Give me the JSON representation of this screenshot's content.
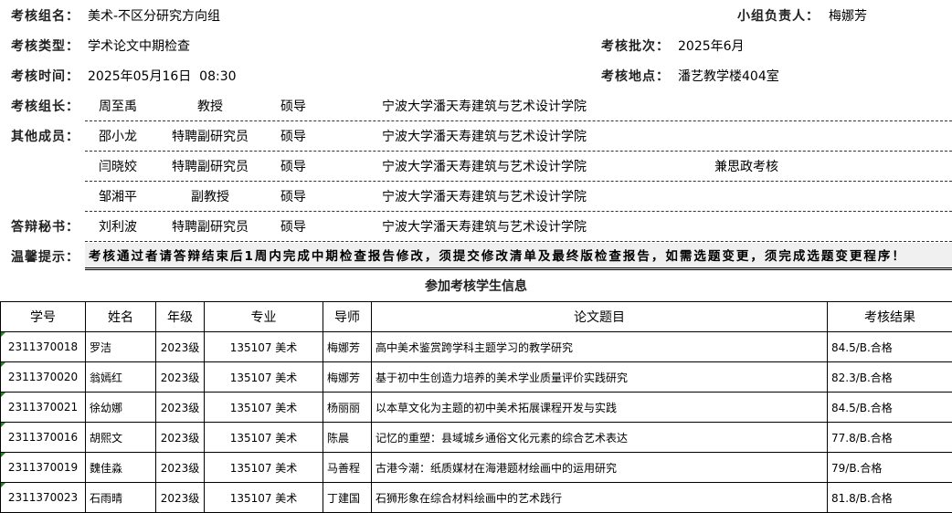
{
  "header": {
    "group_label": "考核组名：",
    "group": "美术-不区分研究方向组",
    "leader_label": "小组负责人：",
    "leader": "梅娜芳",
    "type_label": "考核类型：",
    "type": "学术论文中期检查",
    "batch_label": "考核批次：",
    "batch": "2025年6月",
    "time_label": "考核时间：",
    "time": "2025年05月16日  08:30",
    "place_label": "考核地点：",
    "place": "潘艺教学楼404室"
  },
  "committee": [
    {
      "role": "考核组长：",
      "name": "周至禹",
      "title": "教授",
      "type": "硕导",
      "org": "宁波大学潘天寿建筑与艺术设计学院",
      "note": ""
    },
    {
      "role": "其他成员：",
      "name": "邵小龙",
      "title": "特聘副研究员",
      "type": "硕导",
      "org": "宁波大学潘天寿建筑与艺术设计学院",
      "note": ""
    },
    {
      "role": "",
      "name": "闫晓姣",
      "title": "特聘副研究员",
      "type": "硕导",
      "org": "宁波大学潘天寿建筑与艺术设计学院",
      "note": "兼思政考核"
    },
    {
      "role": "",
      "name": "邹湘平",
      "title": "副教授",
      "type": "硕导",
      "org": "宁波大学潘天寿建筑与艺术设计学院",
      "note": ""
    },
    {
      "role": "答辩秘书：",
      "name": "刘利波",
      "title": "特聘副研究员",
      "type": "硕导",
      "org": "宁波大学潘天寿建筑与艺术设计学院",
      "note": ""
    }
  ],
  "tip": {
    "label": "温馨提示：",
    "text": "考核通过者请答辩结束后1周内完成中期检查报告修改，须提交修改清单及最终版检查报告，如需选题变更，须完成选题变更程序！"
  },
  "students": {
    "title": "参加考核学生信息",
    "columns": [
      "学号",
      "姓名",
      "年级",
      "专业",
      "导师",
      "论文题目",
      "考核结果"
    ],
    "rows": [
      [
        "2311370018",
        "罗洁",
        "2023级",
        "135107 美术",
        "梅娜芳",
        "高中美术鉴赏跨学科主题学习的教学研究",
        "84.5/B.合格"
      ],
      [
        "2311370020",
        "翁嫣红",
        "2023级",
        "135107 美术",
        "梅娜芳",
        "基于初中生创造力培养的美术学业质量评价实践研究",
        "82.3/B.合格"
      ],
      [
        "2311370021",
        "徐幼娜",
        "2023级",
        "135107 美术",
        "杨丽丽",
        "以本草文化为主题的初中美术拓展课程开发与实践",
        "84.5/B.合格"
      ],
      [
        "2311370016",
        "胡熙文",
        "2023级",
        "135107 美术",
        "陈晨",
        "记忆的重塑：县域城乡通俗文化元素的综合艺术表达",
        "77.8/B.合格"
      ],
      [
        "2311370019",
        "魏佳淼",
        "2023级",
        "135107 美术",
        "马善程",
        "古港今潮：纸质媒材在海港题材绘画中的运用研究",
        "79/B.合格"
      ],
      [
        "2311370023",
        "石雨晴",
        "2023级",
        "135107 美术",
        "丁建国",
        "石狮形象在综合材料绘画中的艺术践行",
        "81.8/B.合格"
      ]
    ]
  }
}
